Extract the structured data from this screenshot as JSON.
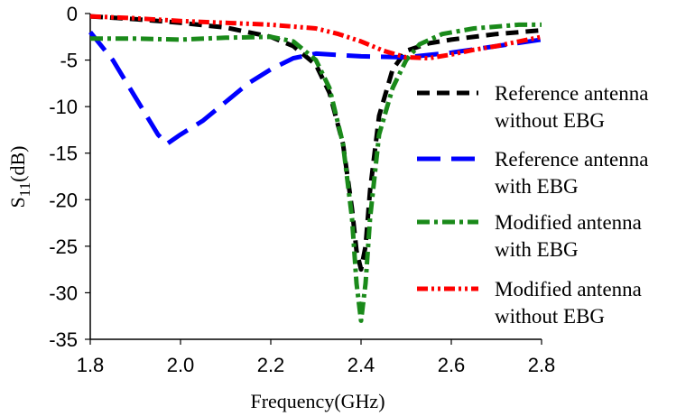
{
  "chart_data": {
    "type": "line",
    "xlabel": "Frequency(GHz)",
    "ylabel_main": "S",
    "ylabel_sub": "11",
    "ylabel_unit": "(dB)",
    "xlim": [
      1.8,
      2.8
    ],
    "ylim": [
      -35,
      0
    ],
    "xticks": [
      "1.8",
      "2.0",
      "2.2",
      "2.4",
      "2.6",
      "2.8"
    ],
    "yticks": [
      "0",
      "-5",
      "-10",
      "-15",
      "-20",
      "-25",
      "-30",
      "-35"
    ],
    "grid": false,
    "legend_position": "right",
    "series": [
      {
        "name_lines": [
          "Reference antenna",
          "without EBG"
        ],
        "color": "#000000",
        "style": "dash",
        "x": [
          1.8,
          1.9,
          2.0,
          2.1,
          2.2,
          2.25,
          2.3,
          2.33,
          2.36,
          2.38,
          2.39,
          2.4,
          2.41,
          2.42,
          2.44,
          2.47,
          2.5,
          2.55,
          2.6,
          2.7,
          2.8
        ],
        "y": [
          -0.3,
          -0.6,
          -1.0,
          -1.5,
          -2.5,
          -3.5,
          -5.5,
          -8.5,
          -14.0,
          -21.0,
          -25.5,
          -27.5,
          -25.0,
          -19.0,
          -11.0,
          -6.0,
          -4.0,
          -3.2,
          -2.8,
          -2.2,
          -1.8
        ]
      },
      {
        "name_lines": [
          "Reference antenna",
          "with EBG"
        ],
        "color": "#0000ff",
        "style": "longdash",
        "x": [
          1.8,
          1.85,
          1.9,
          1.95,
          1.97,
          2.0,
          2.05,
          2.1,
          2.15,
          2.2,
          2.25,
          2.3,
          2.4,
          2.5,
          2.6,
          2.7,
          2.8
        ],
        "y": [
          -2.0,
          -5.0,
          -9.0,
          -13.0,
          -14.0,
          -13.0,
          -11.5,
          -9.5,
          -7.5,
          -6.0,
          -4.8,
          -4.3,
          -4.6,
          -4.7,
          -4.2,
          -3.5,
          -2.8
        ]
      },
      {
        "name_lines": [
          "Modified antenna",
          " with EBG"
        ],
        "color": "#1a8a1a",
        "style": "dashdot",
        "x": [
          1.8,
          1.9,
          2.0,
          2.1,
          2.2,
          2.25,
          2.3,
          2.33,
          2.36,
          2.38,
          2.39,
          2.4,
          2.41,
          2.42,
          2.44,
          2.47,
          2.5,
          2.53,
          2.58,
          2.65,
          2.75,
          2.8
        ],
        "y": [
          -2.7,
          -2.7,
          -2.8,
          -2.6,
          -2.5,
          -3.0,
          -5.0,
          -8.0,
          -14.0,
          -22.0,
          -29.0,
          -33.0,
          -29.0,
          -22.0,
          -13.0,
          -8.0,
          -5.0,
          -3.3,
          -2.2,
          -1.6,
          -1.2,
          -1.2
        ]
      },
      {
        "name_lines": [
          "Modified antenna",
          " without EBG"
        ],
        "color": "#ff0000",
        "style": "dashdotdot",
        "x": [
          1.8,
          1.9,
          2.0,
          2.1,
          2.2,
          2.3,
          2.35,
          2.4,
          2.45,
          2.5,
          2.55,
          2.6,
          2.65,
          2.7,
          2.75,
          2.8
        ],
        "y": [
          -0.3,
          -0.5,
          -0.8,
          -1.0,
          -1.2,
          -1.6,
          -2.2,
          -3.0,
          -4.0,
          -4.7,
          -4.8,
          -4.4,
          -3.9,
          -3.5,
          -3.0,
          -2.5
        ]
      }
    ]
  }
}
